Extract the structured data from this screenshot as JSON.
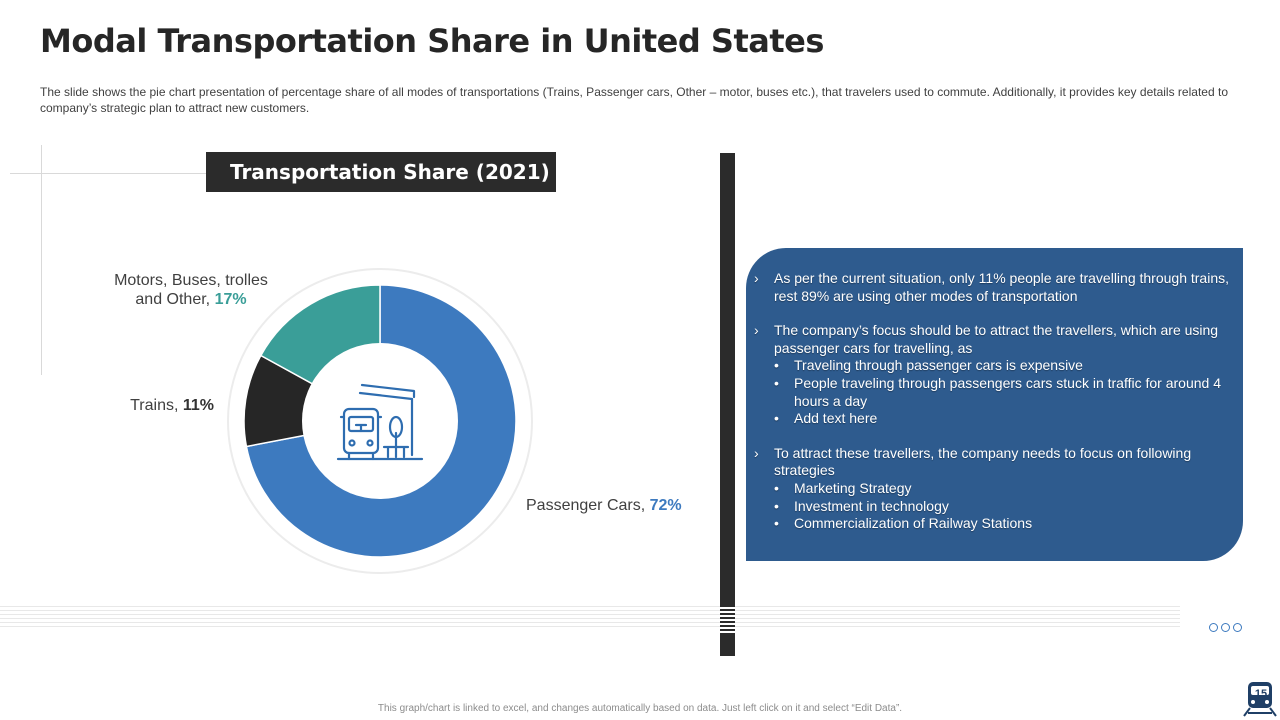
{
  "slide": {
    "title": "Modal Transportation Share in United States",
    "description": "The slide shows the pie chart presentation of percentage share of all modes of transportations (Trains, Passenger cars, Other – motor, buses etc.), that travelers used to commute. Additionally, it provides key details related to company’s strategic plan to attract new customers.",
    "footnote": "This graph/chart is linked to excel, and changes automatically based on data. Just left click on it and select “Edit Data”.",
    "page_number": "15"
  },
  "chart_data": {
    "type": "pie",
    "title": "Transportation Share (2021)",
    "categories": [
      "Passenger Cars",
      "Trains",
      "Motors, Buses, trolles and Other"
    ],
    "values": [
      72,
      11,
      17
    ],
    "unit": "%",
    "colors": [
      "#3d7abf",
      "#262626",
      "#3a9e98"
    ],
    "labels": {
      "cars_name": "Passenger Cars, ",
      "cars_value": "72%",
      "trains_name": "Trains, ",
      "trains_value": "11%",
      "motors_name_line1": "Motors, Buses, trolles",
      "motors_name_line2": "and Other, ",
      "motors_value": "17%"
    }
  },
  "panel": {
    "arrow": "›",
    "dot": "•",
    "points": [
      {
        "text": "As per the current situation, only 11% people are travelling through trains, rest 89% are using other modes of transportation"
      },
      {
        "text": "The company’s focus should be to attract the travellers, which are using passenger cars for travelling, as",
        "subs": [
          "Traveling through passenger cars is expensive",
          "People traveling through passengers cars stuck in traffic for around 4 hours a day",
          "Add text here"
        ]
      },
      {
        "text": "To attract these travellers, the company needs to focus on following strategies",
        "subs": [
          "Marketing Strategy",
          "Investment in technology",
          "Commercialization of Railway Stations"
        ]
      }
    ]
  },
  "icons": {
    "center": "bus-stop-icon",
    "corner": "train-icon",
    "nav": "pagination-dots-icon"
  }
}
